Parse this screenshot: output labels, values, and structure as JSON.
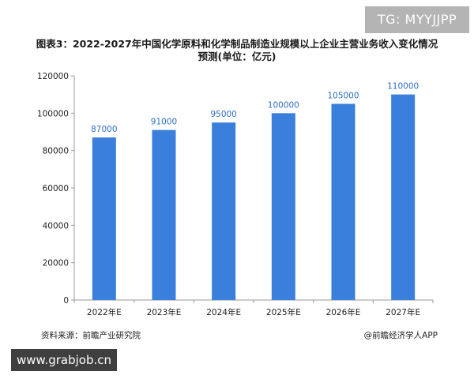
{
  "badges": {
    "telegram": "TG: MYYJJPP",
    "site": "www.grabjob.cn"
  },
  "footer": {
    "source": "资料来源：前瞻产业研究院",
    "credit": "@前瞻经济学人APP"
  },
  "colors": {
    "bar": "#3a7fdc",
    "label": "#2e6fc6",
    "axis": "#999999"
  },
  "chart_data": {
    "type": "bar",
    "title": "图表3：2022-2027年中国化学原料和化学制品制造业规模以上企业主营业务收入变化情况预测(单位：亿元)",
    "categories": [
      "2022年E",
      "2023年E",
      "2024年E",
      "2025年E",
      "2026年E",
      "2027年E"
    ],
    "values": [
      87000,
      91000,
      95000,
      100000,
      105000,
      110000
    ],
    "data_labels": [
      "87000",
      "91000",
      "95000",
      "100000",
      "105000",
      "110000"
    ],
    "yticks": [
      0,
      20000,
      40000,
      60000,
      80000,
      100000,
      120000
    ],
    "ylim": [
      0,
      120000
    ],
    "xlabel": "",
    "ylabel": "",
    "grid": false,
    "legend": "none"
  }
}
